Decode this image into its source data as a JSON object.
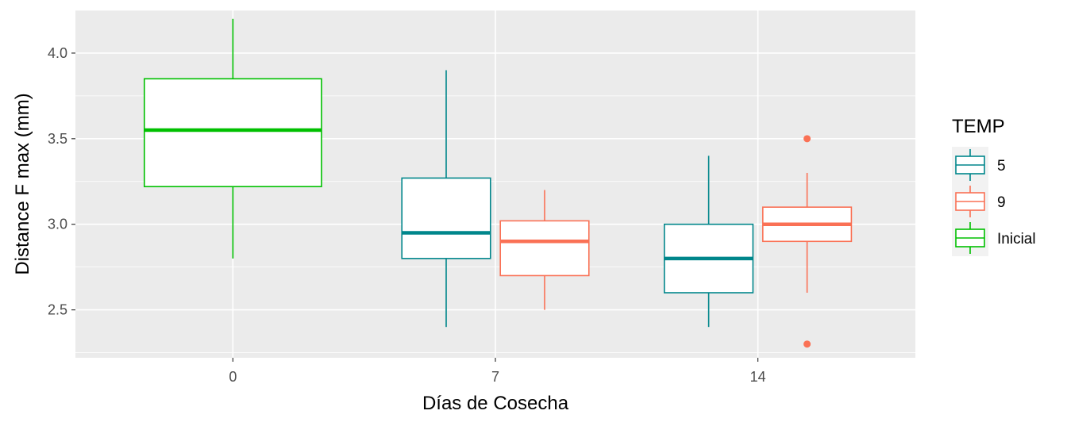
{
  "chart_data": {
    "type": "boxplot",
    "title": "",
    "xlabel": "Días de Cosecha",
    "ylabel": "Distance F max (mm)",
    "categories": [
      "0",
      "7",
      "14"
    ],
    "ylim": [
      2.22,
      4.25
    ],
    "y_ticks": [
      2.5,
      3.0,
      3.5,
      4.0
    ],
    "y_tick_labels": [
      "2.5",
      "3.0",
      "3.5",
      "4.0"
    ],
    "grid": true,
    "legend": {
      "title": "TEMP",
      "position": "right",
      "entries": [
        {
          "label": "5",
          "color": "#00868B"
        },
        {
          "label": "9",
          "color": "#FA7155"
        },
        {
          "label": "Inicial",
          "color": "#00C000"
        }
      ]
    },
    "series": [
      {
        "name": "5",
        "color": "#00868B",
        "boxes": [
          {
            "category": "7",
            "min": 2.4,
            "q1": 2.8,
            "median": 2.95,
            "q3": 3.27,
            "max": 3.9,
            "outliers": []
          },
          {
            "category": "14",
            "min": 2.4,
            "q1": 2.6,
            "median": 2.8,
            "q3": 3.0,
            "max": 3.4,
            "outliers": []
          }
        ]
      },
      {
        "name": "9",
        "color": "#FA7155",
        "boxes": [
          {
            "category": "7",
            "min": 2.5,
            "q1": 2.7,
            "median": 2.9,
            "q3": 3.02,
            "max": 3.2,
            "outliers": []
          },
          {
            "category": "14",
            "min": 2.6,
            "q1": 2.9,
            "median": 3.0,
            "q3": 3.1,
            "max": 3.3,
            "outliers": [
              2.3,
              3.5
            ]
          }
        ]
      },
      {
        "name": "Inicial",
        "color": "#00C000",
        "boxes": [
          {
            "category": "0",
            "min": 2.8,
            "q1": 3.22,
            "median": 3.55,
            "q3": 3.85,
            "max": 4.2,
            "outliers": []
          }
        ]
      }
    ]
  }
}
